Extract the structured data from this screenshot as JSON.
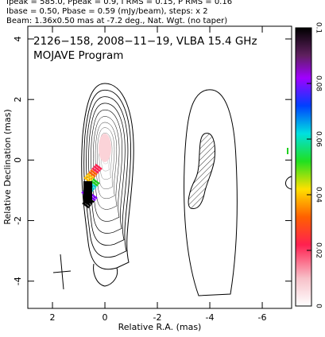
{
  "chart_data": {
    "type": "contour",
    "header_lines": [
      "Ipeak = 585.0, Ppeak = 0.9, I RMS = 0.15, P RMS = 0.16",
      "Ibase = 0.50, Pbase = 0.59 (mJy/beam), steps: x 2",
      "Beam: 1.36x0.50 mas at -7.2 deg., Nat. Wgt. (no taper)"
    ],
    "annotations": [
      "2126−158, 2008−11−19, VLBA 15.4 GHz",
      "MOJAVE Program"
    ],
    "xlabel": "Relative R.A. (mas)",
    "ylabel": "Relative Declination (mas)",
    "xlim": [
      2.94,
      -7.12
    ],
    "xticks": [
      2,
      0,
      -2,
      -4,
      -6
    ],
    "ylim": [
      -4.9,
      4.42
    ],
    "yticks": [
      -4,
      -2,
      0,
      2,
      4
    ],
    "colorbar": {
      "lim": [
        0,
        0.1
      ],
      "ticks": [
        0,
        0.02,
        0.04,
        0.06,
        0.08,
        0.1
      ]
    }
  }
}
